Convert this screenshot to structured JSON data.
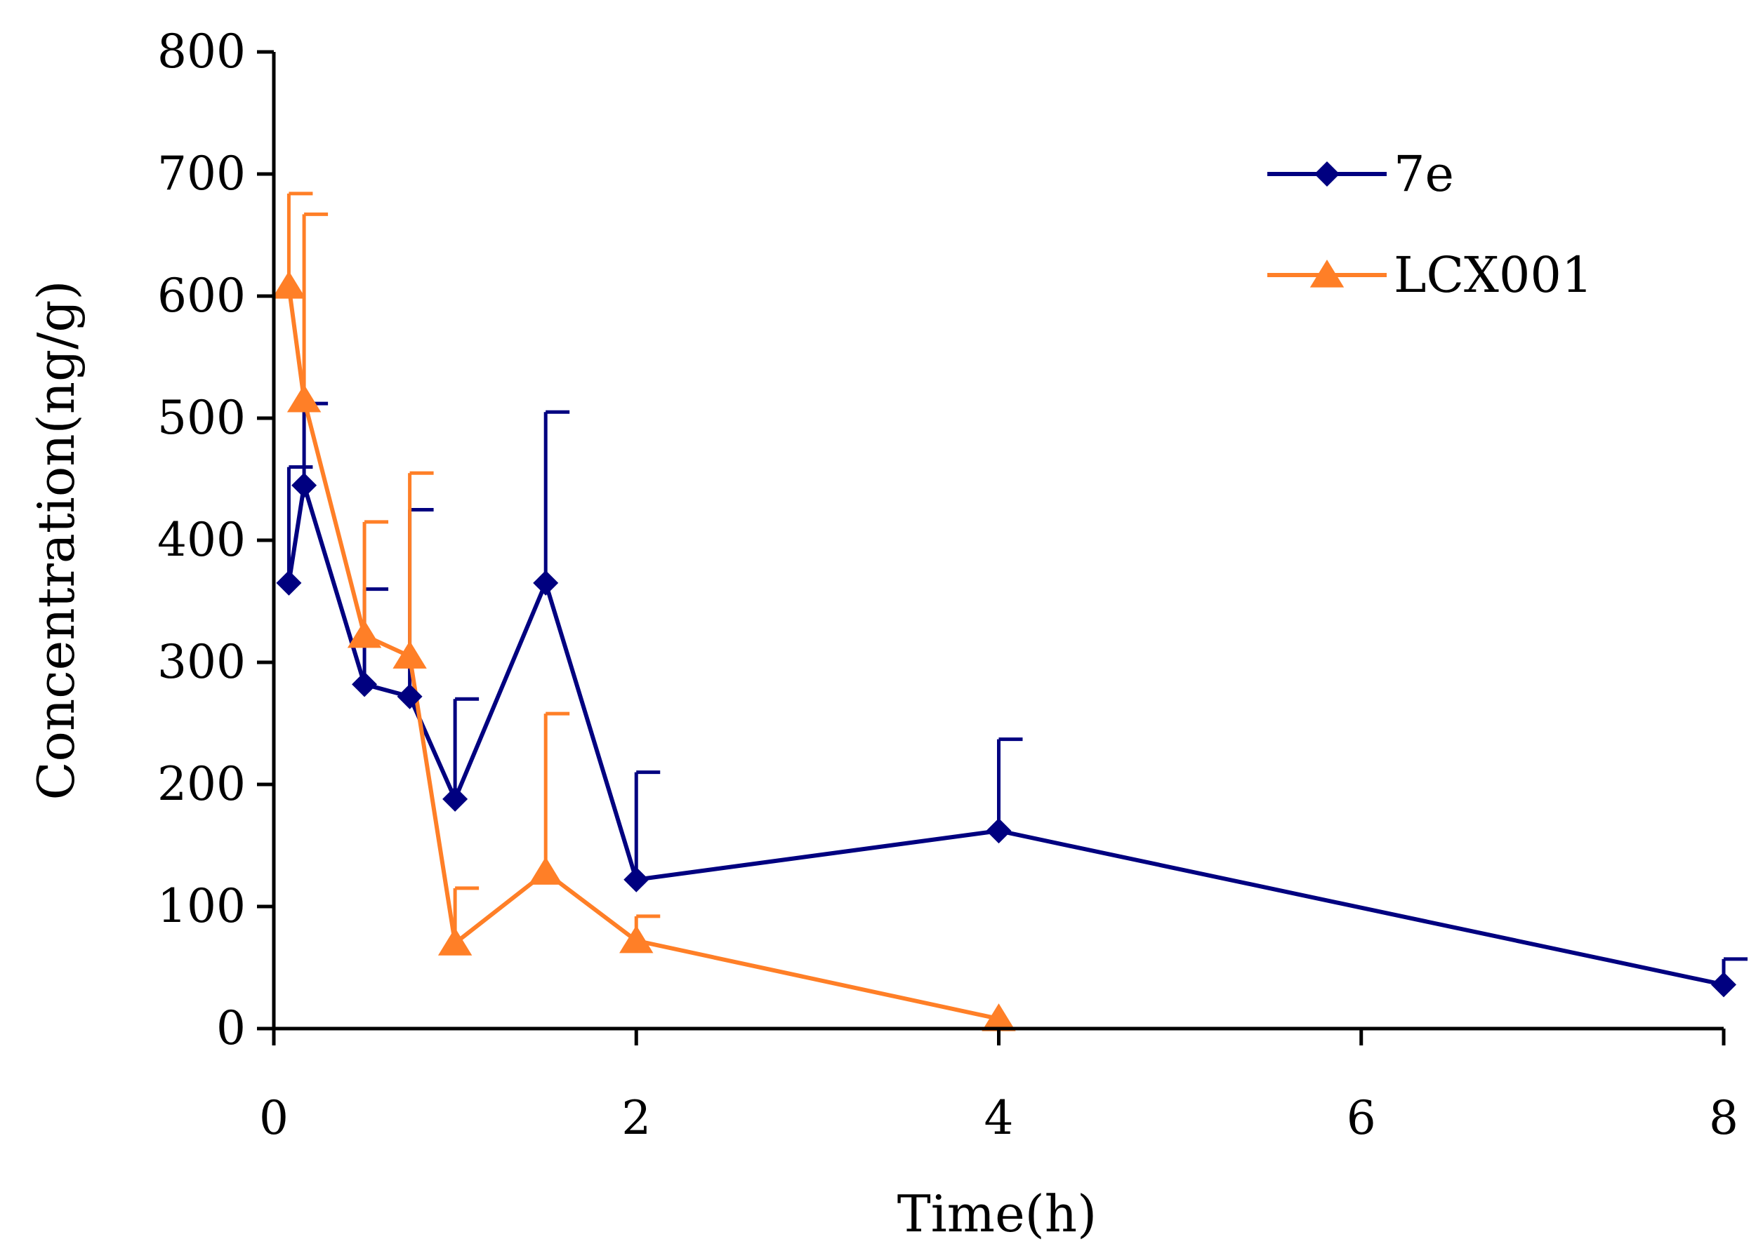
{
  "chart_data": {
    "type": "line",
    "title": "",
    "xlabel": "Time(h)",
    "ylabel": "Concentration(ng/g)",
    "xlim": [
      0,
      8
    ],
    "ylim": [
      0,
      800
    ],
    "x_ticks": [
      "0",
      "2",
      "4",
      "6",
      "8"
    ],
    "y_ticks": [
      "0",
      "100",
      "200",
      "300",
      "400",
      "500",
      "600",
      "700",
      "800"
    ],
    "x_tick_values": [
      0,
      2,
      4,
      6,
      8
    ],
    "y_tick_values": [
      0,
      100,
      200,
      300,
      400,
      500,
      600,
      700,
      800
    ],
    "grid": false,
    "legend_position": "top-right",
    "series": [
      {
        "name": "7e",
        "color": "#000080",
        "marker": "diamond",
        "x": [
          0.083,
          0.167,
          0.5,
          0.75,
          1,
          1.5,
          2,
          4,
          8
        ],
        "values": [
          365,
          445,
          282,
          272,
          188,
          365,
          122,
          162,
          36
        ],
        "error_upper": [
          460,
          512,
          360,
          425,
          270,
          505,
          210,
          237,
          57
        ]
      },
      {
        "name": "LCX001",
        "color": "#ff7f27",
        "marker": "triangle",
        "x": [
          0.083,
          0.167,
          0.5,
          0.75,
          1,
          1.5,
          2,
          4
        ],
        "values": [
          608,
          515,
          322,
          305,
          70,
          128,
          72,
          8
        ],
        "error_upper": [
          684,
          667,
          415,
          455,
          115,
          258,
          92,
          8
        ]
      }
    ]
  }
}
